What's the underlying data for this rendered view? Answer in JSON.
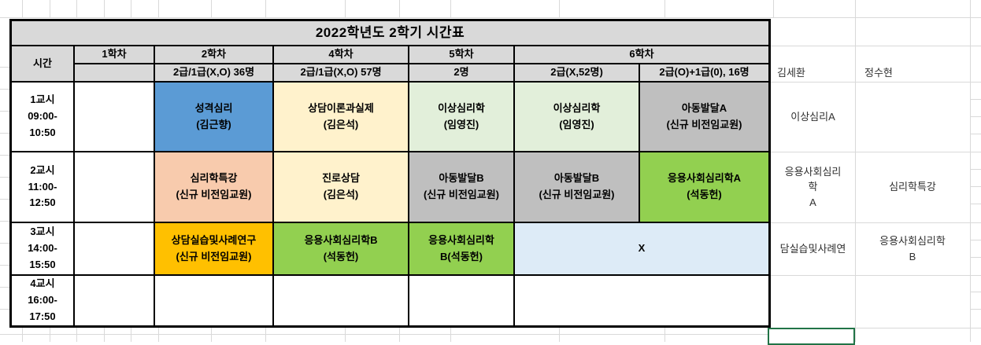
{
  "title": "2022학년도 2학기 시간표",
  "header": {
    "time": "시간",
    "h1": "1학차",
    "h2": "2학차",
    "h4": "4학차",
    "h5": "5학차",
    "h6": "6학차",
    "s1": "",
    "s2": "2급/1급(X,O) 36명",
    "s4": "2급/1급(X,O) 57명",
    "s5": "2명",
    "s6a": "2급(X,52명)",
    "s6b": "2급(O)+1급(0), 16명"
  },
  "rows": {
    "p1": {
      "time": "1교시\n09:00-\n10:50",
      "c2": "성격심리\n(김근향)",
      "c4": "상담이론과실제\n(김은석)",
      "c5": "이상심리학\n(임영진)",
      "c6a": "이상심리학\n(임영진)",
      "c6b": "아동발달A\n(신규 비전임교원)"
    },
    "p2": {
      "time": "2교시\n11:00-\n12:50",
      "c2": "심리학특강\n(신규 비전임교원)",
      "c4": "진로상담\n(김은석)",
      "c5": "아동발달B\n(신규 비전임교원)",
      "c6a": "아동발달B\n(신규 비전임교원)",
      "c6b": "응용사회심리학A\n(석동헌)"
    },
    "p3": {
      "time": "3교시\n14:00-\n15:50",
      "c2": "상담실습및사례연구\n(신규 비전임교원)",
      "c4": "응용사회심리학B\n(석동헌)",
      "c5": "응용사회심리학\nB(석동헌)",
      "c6": "X"
    },
    "p4": {
      "time": "4교시\n16:00-\n17:50"
    }
  },
  "side": {
    "name1": "김세환",
    "name2": "정수현",
    "r1a": "이상심리A",
    "r2a": "응용사회심리\n학\nA",
    "r2b": "심리학특강",
    "r3a": "담실습및사례연",
    "r3b": "응용사회심리학\nB"
  },
  "colors": {
    "header_gray": "#d9d9d9",
    "blue": "#5b9bd5",
    "cream": "#fff2cc",
    "light_green": "#e2efda",
    "gray": "#bfbfbf",
    "salmon": "#f8cbad",
    "gold": "#ffc000",
    "green": "#92d050",
    "light_blue": "#ddebf7",
    "selection_green": "#217346"
  }
}
